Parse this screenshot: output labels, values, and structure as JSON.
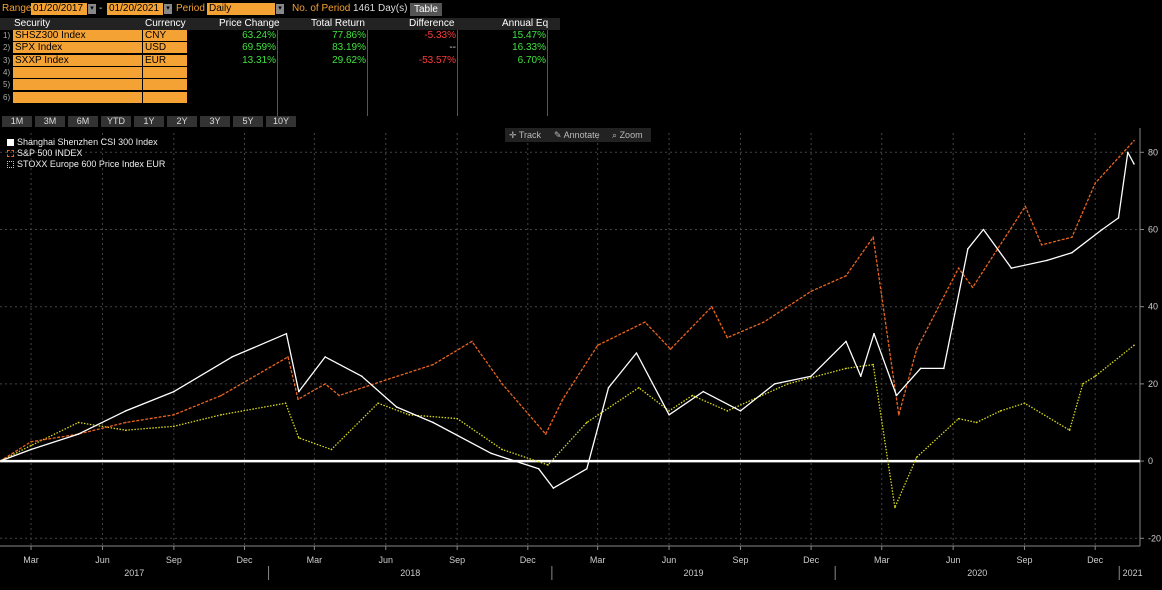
{
  "topbar": {
    "range_label": "Range",
    "start_date": "01/20/2017",
    "dash": "-",
    "end_date": "01/20/2021",
    "period_label": "Period",
    "period_value": "Daily",
    "num_period_label": "No. of Period",
    "num_period_value": "1461 Day(s)",
    "table_button": "Table"
  },
  "table": {
    "headers": [
      "Security",
      "Currency",
      "Price Change",
      "Total Return",
      "Difference",
      "Annual Eq"
    ],
    "rows": [
      {
        "idx": "1)",
        "security": "SHSZ300 Index",
        "currency": "CNY",
        "price_change": "63.24%",
        "total_return": "77.86%",
        "difference": "-5.33%",
        "annual_eq": "15.47%"
      },
      {
        "idx": "2)",
        "security": "SPX Index",
        "currency": "USD",
        "price_change": "69.59%",
        "total_return": "83.19%",
        "difference": "--",
        "annual_eq": "16.33%"
      },
      {
        "idx": "3)",
        "security": "SXXP Index",
        "currency": "EUR",
        "price_change": "13.31%",
        "total_return": "29.62%",
        "difference": "-53.57%",
        "annual_eq": "6.70%"
      },
      {
        "idx": "4)",
        "security": "",
        "currency": "",
        "price_change": "",
        "total_return": "",
        "difference": "",
        "annual_eq": ""
      },
      {
        "idx": "5)",
        "security": "",
        "currency": "",
        "price_change": "",
        "total_return": "",
        "difference": "",
        "annual_eq": ""
      },
      {
        "idx": "6)",
        "security": "",
        "currency": "",
        "price_change": "",
        "total_return": "",
        "difference": "",
        "annual_eq": ""
      }
    ]
  },
  "periods": [
    "1M",
    "3M",
    "6M",
    "YTD",
    "1Y",
    "2Y",
    "3Y",
    "5Y",
    "10Y"
  ],
  "toolbar": {
    "track": "Track",
    "annotate": "Annotate",
    "zoom": "Zoom"
  },
  "colors": {
    "accent": "#f4a234",
    "positive": "#3ee33e",
    "negative": "#ff3b3b",
    "csi300": "#ffffff",
    "spx": "#e8651e",
    "stoxx": "#d8d81c"
  },
  "chart_data": {
    "type": "line",
    "ylim": [
      -22,
      85
    ],
    "y_ticks": [
      -20,
      0,
      20,
      40,
      60,
      80
    ],
    "x_range": [
      "2017-01-20",
      "2021-01-20"
    ],
    "x_tick_labels": [
      "Mar",
      "Jun",
      "Sep",
      "Dec",
      "Mar",
      "Jun",
      "Sep",
      "Dec",
      "Mar",
      "Jun",
      "Sep",
      "Dec",
      "Mar",
      "Jun",
      "Sep",
      "Dec"
    ],
    "x_tick_dates": [
      "2017-03-01",
      "2017-06-01",
      "2017-09-01",
      "2017-12-01",
      "2018-03-01",
      "2018-06-01",
      "2018-09-01",
      "2018-12-01",
      "2019-03-01",
      "2019-06-01",
      "2019-09-01",
      "2019-12-01",
      "2020-03-01",
      "2020-06-01",
      "2020-09-01",
      "2020-12-01"
    ],
    "year_labels": [
      "2017",
      "2018",
      "2019",
      "2020",
      "2021"
    ],
    "grid": true,
    "legend_position": "top-left",
    "series": [
      {
        "name": "Shanghai Shenzhen CSI 300 Index",
        "style": "solid",
        "x": [
          "2017-01-20",
          "2017-03-01",
          "2017-05-01",
          "2017-07-01",
          "2017-09-01",
          "2017-11-15",
          "2018-01-24",
          "2018-02-09",
          "2018-03-15",
          "2018-05-01",
          "2018-06-15",
          "2018-08-01",
          "2018-10-15",
          "2018-12-15",
          "2019-01-03",
          "2019-02-15",
          "2019-03-15",
          "2019-04-20",
          "2019-06-01",
          "2019-07-15",
          "2019-09-01",
          "2019-10-15",
          "2019-12-01",
          "2020-01-15",
          "2020-02-03",
          "2020-02-20",
          "2020-03-20",
          "2020-04-20",
          "2020-05-20",
          "2020-06-20",
          "2020-07-10",
          "2020-08-15",
          "2020-09-30",
          "2020-11-01",
          "2020-12-10",
          "2020-12-31",
          "2021-01-12",
          "2021-01-20"
        ],
        "y": [
          0,
          3,
          7,
          13,
          18,
          27,
          33,
          18,
          27,
          22,
          14,
          10,
          2,
          -2,
          -7,
          -2,
          19,
          28,
          12,
          18,
          13,
          20,
          22,
          31,
          22,
          33,
          17,
          24,
          24,
          55,
          60,
          50,
          52,
          54,
          60,
          63,
          80,
          77
        ]
      },
      {
        "name": "S&P 500 INDEX",
        "style": "dashed",
        "x": [
          "2017-01-20",
          "2017-03-01",
          "2017-05-01",
          "2017-07-01",
          "2017-09-01",
          "2017-11-01",
          "2018-01-26",
          "2018-02-08",
          "2018-03-15",
          "2018-04-02",
          "2018-06-01",
          "2018-08-01",
          "2018-09-20",
          "2018-10-29",
          "2018-12-24",
          "2019-01-15",
          "2019-03-01",
          "2019-05-01",
          "2019-06-03",
          "2019-07-26",
          "2019-08-15",
          "2019-10-01",
          "2019-12-01",
          "2020-01-15",
          "2020-02-19",
          "2020-03-23",
          "2020-04-15",
          "2020-06-08",
          "2020-06-26",
          "2020-09-02",
          "2020-09-23",
          "2020-11-01",
          "2020-12-01",
          "2021-01-20"
        ],
        "y": [
          0,
          5,
          7,
          10,
          12,
          17,
          27,
          16,
          20,
          17,
          21,
          25,
          31,
          20,
          7,
          16,
          30,
          36,
          29,
          40,
          32,
          36,
          44,
          48,
          58,
          12,
          29,
          50,
          45,
          66,
          56,
          58,
          72,
          83
        ]
      },
      {
        "name": "STOXX Europe 600 Price Index EUR",
        "style": "dotted",
        "x": [
          "2017-01-20",
          "2017-03-01",
          "2017-05-01",
          "2017-07-01",
          "2017-09-01",
          "2017-11-01",
          "2018-01-23",
          "2018-02-09",
          "2018-03-23",
          "2018-05-22",
          "2018-07-01",
          "2018-09-01",
          "2018-10-29",
          "2018-12-27",
          "2019-02-15",
          "2019-04-23",
          "2019-06-01",
          "2019-07-01",
          "2019-08-15",
          "2019-11-01",
          "2020-01-15",
          "2020-02-19",
          "2020-03-18",
          "2020-04-15",
          "2020-06-08",
          "2020-07-01",
          "2020-08-01",
          "2020-09-01",
          "2020-10-29",
          "2020-11-15",
          "2020-12-01",
          "2021-01-20"
        ],
        "y": [
          0,
          4,
          10,
          8,
          9,
          12,
          15,
          6,
          3,
          15,
          12,
          11,
          3,
          -1,
          10,
          19,
          13,
          17,
          13,
          20,
          24,
          25,
          -12,
          1,
          11,
          10,
          13,
          15,
          8,
          20,
          22,
          30
        ]
      }
    ]
  }
}
